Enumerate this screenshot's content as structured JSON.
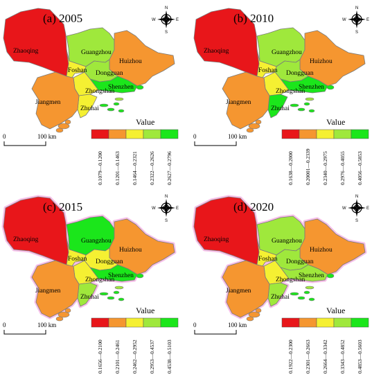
{
  "colors": {
    "red": "#e8161a",
    "orange": "#f59630",
    "yellow": "#f5f032",
    "lightgreen": "#9fe83c",
    "green": "#1be61b",
    "boundary": "#7a7a7a",
    "shadow": "#f7c0e8"
  },
  "legend_title": "Value",
  "scale": {
    "zero": "0",
    "dist": "100 km"
  },
  "compass": {
    "n": "N",
    "s": "S",
    "e": "E",
    "w": "W"
  },
  "panels": [
    {
      "title": "(a) 2005",
      "legend": [
        "0.1079—0.1200",
        "0.1201—0.1463",
        "0.1464—0.2321",
        "0.2322—0.2626",
        "0.2627—0.2796"
      ],
      "cities": {
        "Zhaoqing": "Zhaoqing",
        "Guangzhou": "Guangzhou",
        "Huizhou": "Huizhou",
        "Foshan": "Foshan",
        "Dongguan": "Dongguan",
        "Zhongshan": "Zhongshan",
        "Shenzhen": "Shenzhen",
        "Jiangmen": "Jiangmen",
        "Zhuhai": "Zhuhai"
      },
      "city_class": {
        "Zhaoqing": "red",
        "Guangzhou": "lightgreen",
        "Huizhou": "orange",
        "Foshan": "yellow",
        "Dongguan": "lightgreen",
        "Zhongshan": "yellow",
        "Shenzhen": "green",
        "Jiangmen": "orange",
        "Zhuhai": "yellow"
      }
    },
    {
      "title": "(b) 2010",
      "legend": [
        "0.1638—0.2000",
        "0.20001—0.2339",
        "0.2340—0.2975",
        "0.2976—0.4055",
        "0.4056—0.5853"
      ],
      "cities": {
        "Zhaoqing": "Zhaoqing",
        "Guangzhou": "Guangzhou",
        "Huizhou": "Huizhou",
        "Foshan": "Foshan",
        "Dongguan": "Dongguan",
        "Zhongshan": "Zhongshan",
        "Shenzhen": "Shenzhen",
        "Jiangmen": "Jiangmen",
        "Zhuhai": "Zhuhai"
      },
      "city_class": {
        "Zhaoqing": "red",
        "Guangzhou": "lightgreen",
        "Huizhou": "orange",
        "Foshan": "yellow",
        "Dongguan": "lightgreen",
        "Zhongshan": "yellow",
        "Shenzhen": "green",
        "Jiangmen": "orange",
        "Zhuhai": "green"
      }
    },
    {
      "title": "(c) 2015",
      "legend": [
        "0.1656—0.2100",
        "0.2101—0.2461",
        "0.2462—0.2952",
        "0.2953—0.4537",
        "0.4538—0.5103"
      ],
      "cities": {
        "Zhaoqing": "Zhaoqing",
        "Guangzhou": "Guangzhou",
        "Huizhou": "Huizhou",
        "Foshan": "Foshan",
        "Dongguan": "Dongguan",
        "Zhongshan": "Zhongshan",
        "Shenzhen": "Shenzhen",
        "Jiangmen": "Jiangmen",
        "Zhuhai": "Zhuhai"
      },
      "city_class": {
        "Zhaoqing": "red",
        "Guangzhou": "green",
        "Huizhou": "orange",
        "Foshan": "yellow",
        "Dongguan": "yellow",
        "Zhongshan": "yellow",
        "Shenzhen": "green",
        "Jiangmen": "orange",
        "Zhuhai": "lightgreen"
      }
    },
    {
      "title": "(d) 2020",
      "legend": [
        "0.1922—0.2300",
        "0.2301—0.2663",
        "0.2664—0.3342",
        "0.3343—0.4852",
        "0.4853—0.5603"
      ],
      "cities": {
        "Zhaoqing": "Zhaoqing",
        "Guangzhou": "Guangzhou",
        "Huizhou": "Huizhou",
        "Foshan": "Foshan",
        "Dongguan": "Dongguan",
        "Zhongshan": "Zhongshan",
        "Shenzhen": "Shenzhen",
        "Jiangmen": "Jiangmen",
        "Zhuhai": "Zhuhai"
      },
      "city_class": {
        "Zhaoqing": "red",
        "Guangzhou": "lightgreen",
        "Huizhou": "orange",
        "Foshan": "yellow",
        "Dongguan": "lightgreen",
        "Zhongshan": "yellow",
        "Shenzhen": "lightgreen",
        "Jiangmen": "orange",
        "Zhuhai": "lightgreen"
      }
    }
  ]
}
